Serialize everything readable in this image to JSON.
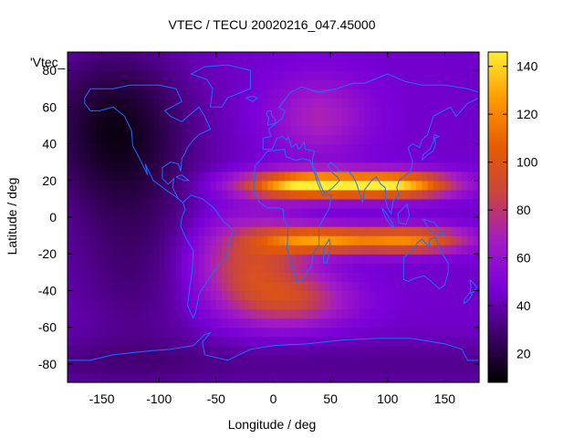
{
  "chart_data": {
    "type": "heatmap",
    "title": "VTEC / TECU 20020216_047.45000",
    "xlabel": "Longitude / deg",
    "ylabel": "Latitude / deg",
    "series_key": "'Vtec_",
    "xlim": [
      -180,
      180
    ],
    "ylim": [
      -90,
      90
    ],
    "x_ticks": [
      -150,
      -100,
      -50,
      0,
      50,
      100,
      150
    ],
    "y_ticks": [
      -80,
      -60,
      -40,
      -20,
      0,
      20,
      40,
      60,
      80
    ],
    "colorbar": {
      "min": 8,
      "max": 146,
      "ticks": [
        20,
        40,
        60,
        80,
        100,
        120,
        140
      ],
      "palette": [
        "#000000",
        "#3d0066",
        "#7a00d9",
        "#a31cc4",
        "#c9453f",
        "#e65c00",
        "#ff9900",
        "#ffee33"
      ]
    },
    "tec_features": [
      {
        "lon": 30,
        "lat": 18,
        "peak": 145,
        "sig_lon": 40,
        "sig_lat": 5
      },
      {
        "lon": 110,
        "lat": 18,
        "peak": 130,
        "sig_lon": 35,
        "sig_lat": 5
      },
      {
        "lon": 40,
        "lat": -12,
        "peak": 115,
        "sig_lon": 35,
        "sig_lat": 5
      },
      {
        "lon": 120,
        "lat": -12,
        "peak": 115,
        "sig_lon": 35,
        "sig_lat": 5
      },
      {
        "lon": -20,
        "lat": -25,
        "peak": 92,
        "sig_lon": 35,
        "sig_lat": 18
      },
      {
        "lon": 20,
        "lat": -45,
        "peak": 80,
        "sig_lon": 35,
        "sig_lat": 10
      },
      {
        "lon": 40,
        "lat": 55,
        "peak": 70,
        "sig_lon": 30,
        "sig_lat": 15
      }
    ],
    "background_tec": 45,
    "coastline_color": "#1f6fff"
  }
}
